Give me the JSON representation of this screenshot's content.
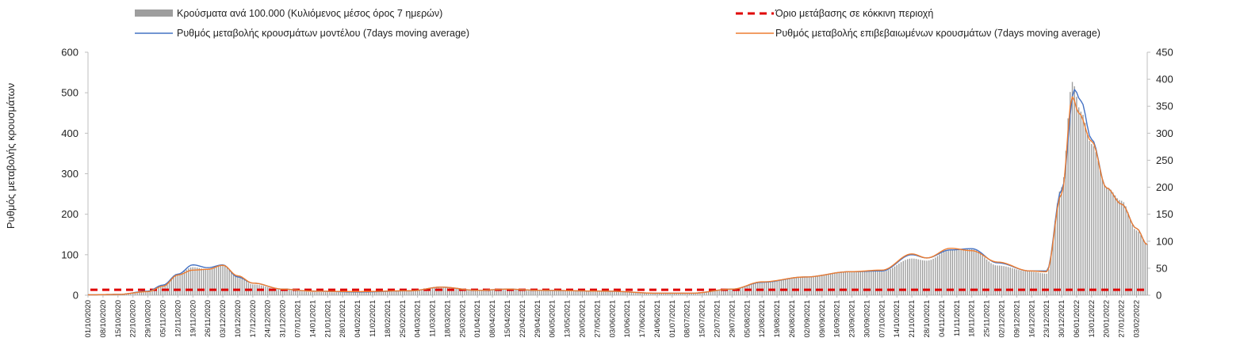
{
  "colors": {
    "bars": "#9e9e9e",
    "model": "#4472c4",
    "confirmed": "#ed7d31",
    "threshold": "#e00000",
    "axis": "#bfbfbf"
  },
  "legend": {
    "bars": "Κρούσματα ανά 100.000 (Κυλιόμενος μέσος όρος 7 ημερών)",
    "threshold": "Όριο μετάβασης σε κόκκινη περιοχή",
    "model": "Ρυθμός μεταβολής κρουσμάτων μοντέλου (7days moving average)",
    "confirmed": "Ρυθμός μεταβολής επιβεβαιωμένων κρουσμάτων (7days moving average)"
  },
  "chart_data": {
    "type": "bar",
    "ylabel": "Ρυθμός μεταβολής κρουσμάτων",
    "ylim": [
      0,
      600
    ],
    "yticks": [
      0,
      100,
      200,
      300,
      400,
      500,
      600
    ],
    "y2lim": [
      0,
      450
    ],
    "y2ticks": [
      0,
      50,
      100,
      150,
      200,
      250,
      300,
      350,
      400,
      450
    ],
    "start_date": "2020-10-01",
    "end_date": "2022-02-08",
    "xticks": [
      "01/10/2020",
      "08/10/2020",
      "15/10/2020",
      "22/10/2020",
      "29/10/2020",
      "05/11/2020",
      "12/11/2020",
      "19/11/2020",
      "26/11/2020",
      "03/12/2020",
      "10/12/2020",
      "17/12/2020",
      "24/12/2020",
      "31/12/2020",
      "07/01/2021",
      "14/01/2021",
      "21/01/2021",
      "28/01/2021",
      "04/02/2021",
      "11/02/2021",
      "18/02/2021",
      "25/02/2021",
      "04/03/2021",
      "11/03/2021",
      "18/03/2021",
      "25/03/2021",
      "01/04/2021",
      "08/04/2021",
      "15/04/2021",
      "22/04/2021",
      "29/04/2021",
      "06/05/2021",
      "13/05/2021",
      "20/05/2021",
      "27/05/2021",
      "03/06/2021",
      "10/06/2021",
      "17/06/2021",
      "24/06/2021",
      "01/07/2021",
      "08/07/2021",
      "15/07/2021",
      "22/07/2021",
      "29/07/2021",
      "05/08/2021",
      "12/08/2021",
      "19/08/2021",
      "26/08/2021",
      "02/09/2021",
      "09/09/2021",
      "16/09/2021",
      "23/09/2021",
      "30/09/2021",
      "07/10/2021",
      "14/10/2021",
      "21/10/2021",
      "28/10/2021",
      "04/11/2021",
      "11/11/2021",
      "18/11/2021",
      "25/11/2021",
      "02/12/2021",
      "09/12/2021",
      "16/12/2021",
      "23/12/2021",
      "30/12/2021",
      "06/01/2022",
      "13/01/2022",
      "20/01/2022",
      "27/01/2022",
      "03/02/2022"
    ],
    "threshold_value": 10,
    "bars_series": {
      "name": "Κρούσματα ανά 100.000 (Κυλιόμενος μέσος όρος 7 ημερών)",
      "axis": "secondary",
      "keypoints": [
        [
          "2020-10-01",
          1
        ],
        [
          "2020-10-15",
          2
        ],
        [
          "2020-10-29",
          8
        ],
        [
          "2020-11-05",
          18
        ],
        [
          "2020-11-12",
          40
        ],
        [
          "2020-11-19",
          52
        ],
        [
          "2020-11-26",
          48
        ],
        [
          "2020-12-03",
          55
        ],
        [
          "2020-12-10",
          35
        ],
        [
          "2020-12-17",
          20
        ],
        [
          "2020-12-31",
          10
        ],
        [
          "2021-01-14",
          6
        ],
        [
          "2021-02-04",
          5
        ],
        [
          "2021-03-01",
          8
        ],
        [
          "2021-03-15",
          14
        ],
        [
          "2021-04-01",
          8
        ],
        [
          "2021-04-15",
          10
        ],
        [
          "2021-05-01",
          8
        ],
        [
          "2021-06-01",
          7
        ],
        [
          "2021-06-24",
          3
        ],
        [
          "2021-07-10",
          4
        ],
        [
          "2021-07-29",
          12
        ],
        [
          "2021-08-12",
          24
        ],
        [
          "2021-09-01",
          33
        ],
        [
          "2021-09-22",
          44
        ],
        [
          "2021-10-07",
          44
        ],
        [
          "2021-10-21",
          68
        ],
        [
          "2021-10-28",
          64
        ],
        [
          "2021-11-08",
          84
        ],
        [
          "2021-11-18",
          85
        ],
        [
          "2021-11-30",
          55
        ],
        [
          "2021-12-15",
          44
        ],
        [
          "2021-12-23",
          40
        ],
        [
          "2021-12-30",
          200
        ],
        [
          "2022-01-04",
          395
        ],
        [
          "2022-01-08",
          340
        ],
        [
          "2022-01-13",
          280
        ],
        [
          "2022-01-20",
          200
        ],
        [
          "2022-01-27",
          175
        ],
        [
          "2022-02-03",
          120
        ],
        [
          "2022-02-08",
          95
        ]
      ]
    },
    "series": [
      {
        "name": "Ρυθμός μεταβολής κρουσμάτων μοντέλου (7days moving average)",
        "axis": "primary",
        "keypoints": [
          [
            "2020-10-01",
            1
          ],
          [
            "2020-10-15",
            2
          ],
          [
            "2020-10-29",
            10
          ],
          [
            "2020-11-05",
            25
          ],
          [
            "2020-11-12",
            52
          ],
          [
            "2020-11-19",
            75
          ],
          [
            "2020-11-26",
            68
          ],
          [
            "2020-12-03",
            75
          ],
          [
            "2020-12-10",
            45
          ],
          [
            "2020-12-17",
            30
          ],
          [
            "2020-12-31",
            15
          ],
          [
            "2021-01-14",
            10
          ],
          [
            "2021-02-04",
            8
          ],
          [
            "2021-03-01",
            11
          ],
          [
            "2021-03-15",
            20
          ],
          [
            "2021-04-01",
            12
          ],
          [
            "2021-04-15",
            15
          ],
          [
            "2021-05-01",
            12
          ],
          [
            "2021-06-01",
            10
          ],
          [
            "2021-06-24",
            5
          ],
          [
            "2021-07-10",
            5
          ],
          [
            "2021-07-29",
            15
          ],
          [
            "2021-08-12",
            32
          ],
          [
            "2021-09-01",
            45
          ],
          [
            "2021-09-22",
            58
          ],
          [
            "2021-10-07",
            60
          ],
          [
            "2021-10-21",
            100
          ],
          [
            "2021-10-28",
            92
          ],
          [
            "2021-11-08",
            112
          ],
          [
            "2021-11-18",
            115
          ],
          [
            "2021-11-30",
            80
          ],
          [
            "2021-12-15",
            60
          ],
          [
            "2021-12-23",
            60
          ],
          [
            "2021-12-30",
            260
          ],
          [
            "2022-01-05",
            508
          ],
          [
            "2022-01-08",
            480
          ],
          [
            "2022-01-13",
            385
          ],
          [
            "2022-01-20",
            265
          ],
          [
            "2022-01-27",
            225
          ],
          [
            "2022-02-03",
            165
          ],
          [
            "2022-02-08",
            125
          ]
        ]
      },
      {
        "name": "Ρυθμός μεταβολής επιβεβαιωμένων κρουσμάτων (7days moving average)",
        "axis": "primary",
        "keypoints": [
          [
            "2020-10-01",
            1
          ],
          [
            "2020-10-15",
            2
          ],
          [
            "2020-10-29",
            9
          ],
          [
            "2020-11-05",
            22
          ],
          [
            "2020-11-12",
            50
          ],
          [
            "2020-11-19",
            62
          ],
          [
            "2020-11-26",
            64
          ],
          [
            "2020-12-03",
            74
          ],
          [
            "2020-12-10",
            48
          ],
          [
            "2020-12-17",
            30
          ],
          [
            "2020-12-31",
            15
          ],
          [
            "2021-01-14",
            10
          ],
          [
            "2021-02-04",
            9
          ],
          [
            "2021-03-01",
            11
          ],
          [
            "2021-03-15",
            20
          ],
          [
            "2021-04-01",
            12
          ],
          [
            "2021-04-15",
            15
          ],
          [
            "2021-05-01",
            12
          ],
          [
            "2021-06-01",
            10
          ],
          [
            "2021-06-24",
            5
          ],
          [
            "2021-07-10",
            5
          ],
          [
            "2021-07-29",
            15
          ],
          [
            "2021-08-12",
            33
          ],
          [
            "2021-09-01",
            45
          ],
          [
            "2021-09-22",
            58
          ],
          [
            "2021-10-07",
            62
          ],
          [
            "2021-10-21",
            102
          ],
          [
            "2021-10-28",
            92
          ],
          [
            "2021-11-08",
            116
          ],
          [
            "2021-11-18",
            110
          ],
          [
            "2021-11-30",
            82
          ],
          [
            "2021-12-15",
            60
          ],
          [
            "2021-12-23",
            58
          ],
          [
            "2021-12-30",
            250
          ],
          [
            "2022-01-04",
            490
          ],
          [
            "2022-01-07",
            450
          ],
          [
            "2022-01-13",
            380
          ],
          [
            "2022-01-20",
            265
          ],
          [
            "2022-01-27",
            225
          ],
          [
            "2022-02-03",
            165
          ],
          [
            "2022-02-08",
            125
          ]
        ]
      }
    ]
  }
}
